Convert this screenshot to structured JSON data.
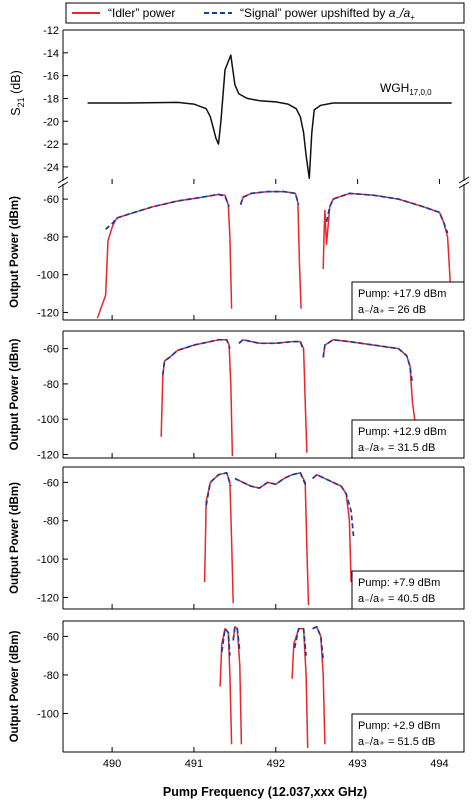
{
  "legend": {
    "idler_label": "“Idler” power",
    "signal_prefix": "“Signal” power upshifted by ",
    "signal_ratio": "a",
    "signal_ratio_sub1": "−",
    "signal_ratio_mid": "/a",
    "signal_ratio_sub2": "+",
    "idler_color": "#e8262b",
    "signal_color": "#1b3a9e"
  },
  "xaxis": {
    "label": "Pump Frequency (12.037,xxx GHz)",
    "ticks": [
      "490",
      "491",
      "492",
      "493",
      "494"
    ]
  },
  "chart_data": [
    {
      "type": "line",
      "ylabel_main": "S",
      "ylabel_sub": "21",
      "ylabel_unit": " (dB)",
      "xlim": [
        489.4,
        494.3
      ],
      "ylim": [
        -25.5,
        -12
      ],
      "yticks": [
        "-12",
        "-14",
        "-16",
        "-18",
        "-20",
        "-22",
        "-24"
      ],
      "annotation_main": "WGH",
      "annotation_sub": "17,0,0",
      "series": [
        {
          "color": "#111111",
          "x": [
            489.7,
            490.2,
            490.8,
            491.0,
            491.15,
            491.2,
            491.27,
            491.3,
            491.33,
            491.38,
            491.45,
            491.5,
            491.55,
            491.65,
            491.8,
            492.0,
            492.15,
            492.25,
            492.3,
            492.34,
            492.37,
            492.41,
            492.44,
            492.47,
            492.55,
            492.7,
            493.0,
            493.5,
            494.0,
            494.15
          ],
          "y": [
            -18.4,
            -18.4,
            -18.35,
            -18.5,
            -18.9,
            -19.6,
            -21.5,
            -22.0,
            -20.0,
            -15.5,
            -14.2,
            -16.8,
            -17.6,
            -18.0,
            -18.2,
            -18.3,
            -18.5,
            -18.9,
            -19.6,
            -21.0,
            -23.0,
            -25.0,
            -21.0,
            -19.0,
            -18.6,
            -18.4,
            -18.4,
            -18.4,
            -18.4,
            -18.4
          ]
        }
      ]
    },
    {
      "type": "line",
      "ylabel": "Output Power (dBm)",
      "xlim": [
        489.4,
        494.3
      ],
      "ylim": [
        -124,
        -52
      ],
      "yticks": [
        "-60",
        "-80",
        "-100",
        "-120"
      ],
      "annotation_line1": "Pump: +17.9 dBm",
      "annotation_line2": "a₋/a₊ = 26 dB",
      "series": [
        {
          "name": "“Idler” power",
          "color": "#e8262b",
          "dash": false,
          "segments": [
            {
              "x": [
                489.82,
                489.92,
                489.95,
                490.0,
                490.03,
                490.06,
                490.2,
                490.5,
                490.8,
                491.1,
                491.3,
                491.38,
                491.42,
                491.44,
                491.46
              ],
              "y": [
                -123,
                -111,
                -82,
                -75,
                -72,
                -70,
                -68,
                -64,
                -61,
                -59,
                -57.5,
                -58,
                -63,
                -80,
                -118
              ]
            },
            {
              "x": [
                491.57,
                491.6,
                491.7,
                491.9,
                492.1,
                492.24,
                492.27,
                492.29,
                492.31
              ],
              "y": [
                -63,
                -59,
                -57,
                -56,
                -56,
                -57,
                -62,
                -95,
                -118
              ]
            },
            {
              "x": [
                492.58,
                492.59,
                492.6,
                492.62,
                492.66,
                492.7,
                492.9,
                493.2,
                493.5,
                493.8,
                494.0,
                494.05,
                494.1,
                494.14
              ],
              "y": [
                -97,
                -78,
                -66,
                -84,
                -64,
                -60,
                -57,
                -58,
                -60,
                -64,
                -67,
                -72,
                -80,
                -110
              ]
            }
          ]
        },
        {
          "name": "“Signal” power upshifted by a₋/a₊",
          "color": "#1b3a9e",
          "dash": true,
          "segments": [
            {
              "x": [
                489.92,
                490.0,
                490.06,
                490.2,
                490.5,
                490.8,
                491.1,
                491.3,
                491.38,
                491.43
              ],
              "y": [
                -76,
                -73,
                -70,
                -68,
                -64,
                -61,
                -59,
                -57.5,
                -58.5,
                -64
              ]
            },
            {
              "x": [
                491.57,
                491.6,
                491.7,
                491.9,
                492.1,
                492.24,
                492.28
              ],
              "y": [
                -63,
                -59,
                -57,
                -56,
                -56,
                -57,
                -63
              ]
            },
            {
              "x": [
                492.62,
                492.66,
                492.7,
                492.9,
                493.2,
                493.5,
                493.8,
                494.0,
                494.05,
                494.1
              ],
              "y": [
                -72,
                -64,
                -60,
                -57,
                -58,
                -60,
                -64,
                -67,
                -72,
                -78
              ]
            }
          ]
        }
      ]
    },
    {
      "type": "line",
      "ylabel": "Output Power (dBm)",
      "xlim": [
        489.4,
        494.3
      ],
      "ylim": [
        -122,
        -50
      ],
      "yticks": [
        "-60",
        "-80",
        "-100",
        "-120"
      ],
      "annotation_line1": "Pump: +12.9 dBm",
      "annotation_line2": "a₋/a₊ = 31.5 dB",
      "series": [
        {
          "name": "“Idler” power",
          "color": "#e8262b",
          "dash": false,
          "segments": [
            {
              "x": [
                490.6,
                490.62,
                490.64,
                490.7,
                490.8,
                491.0,
                491.3,
                491.4,
                491.43,
                491.45,
                491.47
              ],
              "y": [
                -110,
                -75,
                -67,
                -65,
                -61,
                -58,
                -55,
                -55,
                -58,
                -80,
                -121
              ]
            },
            {
              "x": [
                491.55,
                491.6,
                491.8,
                492.0,
                492.2,
                492.3,
                492.34,
                492.36,
                492.38
              ],
              "y": [
                -57,
                -55,
                -57,
                -57,
                -56,
                -56,
                -60,
                -90,
                -119
              ]
            },
            {
              "x": [
                492.58,
                492.6,
                492.7,
                492.9,
                493.2,
                493.5,
                493.6,
                493.64,
                493.67,
                493.7
              ],
              "y": [
                -65,
                -58,
                -55,
                -56,
                -58,
                -60,
                -64,
                -70,
                -90,
                -101
              ]
            }
          ]
        },
        {
          "name": "“Signal” power upshifted by a₋/a₊",
          "color": "#1b3a9e",
          "dash": true,
          "segments": [
            {
              "x": [
                490.62,
                490.64,
                490.7,
                490.8,
                491.0,
                491.3,
                491.4,
                491.44
              ],
              "y": [
                -75,
                -67,
                -65,
                -61,
                -58,
                -55,
                -55,
                -60
              ]
            },
            {
              "x": [
                491.55,
                491.6,
                491.8,
                492.0,
                492.2,
                492.3,
                492.34
              ],
              "y": [
                -57,
                -55,
                -57,
                -57,
                -56,
                -56,
                -61
              ]
            },
            {
              "x": [
                492.58,
                492.6,
                492.7,
                492.9,
                493.2,
                493.5,
                493.6,
                493.64,
                493.67
              ],
              "y": [
                -65,
                -58,
                -55,
                -56,
                -58,
                -60,
                -64,
                -70,
                -80
              ]
            }
          ]
        }
      ]
    },
    {
      "type": "line",
      "ylabel": "Output Power (dBm)",
      "xlim": [
        489.4,
        494.3
      ],
      "ylim": [
        -126,
        -52
      ],
      "yticks": [
        "-60",
        "-80",
        "-100",
        "-120"
      ],
      "annotation_line1": "Pump: +7.9 dBm",
      "annotation_line2": "a₋/a₊ = 40.5 dB",
      "series": [
        {
          "name": "“Idler” power",
          "color": "#e8262b",
          "dash": false,
          "segments": [
            {
              "x": [
                491.13,
                491.15,
                491.2,
                491.3,
                491.4,
                491.44,
                491.46,
                491.48
              ],
              "y": [
                -112,
                -70,
                -60,
                -56,
                -55,
                -60,
                -90,
                -123
              ]
            },
            {
              "x": [
                491.5,
                491.6,
                491.7,
                491.8,
                491.9,
                492.0,
                492.1,
                492.2,
                492.3,
                492.36,
                492.38,
                492.4
              ],
              "y": [
                -58,
                -60,
                -62,
                -63,
                -60,
                -61,
                -58,
                -56,
                -55,
                -60,
                -95,
                -124
              ]
            },
            {
              "x": [
                492.45,
                492.5,
                492.6,
                492.7,
                492.8,
                492.86,
                492.9,
                492.92
              ],
              "y": [
                -58,
                -56,
                -58,
                -60,
                -62,
                -66,
                -80,
                -112
              ]
            }
          ]
        },
        {
          "name": "“Signal” power upshifted by a₋/a₊",
          "color": "#1b3a9e",
          "dash": true,
          "segments": [
            {
              "x": [
                491.15,
                491.2,
                491.3,
                491.4,
                491.45
              ],
              "y": [
                -72,
                -60,
                -56,
                -55,
                -62
              ]
            },
            {
              "x": [
                491.5,
                491.6,
                491.7,
                491.8,
                491.9,
                492.0,
                492.1,
                492.2,
                492.3,
                492.37
              ],
              "y": [
                -58,
                -60,
                -62,
                -63,
                -60,
                -61,
                -58,
                -56,
                -55,
                -62
              ]
            },
            {
              "x": [
                492.45,
                492.5,
                492.6,
                492.7,
                492.8,
                492.86,
                492.92,
                492.95
              ],
              "y": [
                -58,
                -56,
                -58,
                -60,
                -62,
                -66,
                -75,
                -88
              ]
            }
          ]
        }
      ]
    },
    {
      "type": "line",
      "ylabel": "Output Power (dBm)",
      "xlim": [
        489.4,
        494.3
      ],
      "ylim": [
        -120,
        -52
      ],
      "yticks": [
        "-60",
        "-80",
        "-100"
      ],
      "annotation_line1": "Pump: +2.9 dBm",
      "annotation_line2": "a₋/a₊ = 51.5 dB",
      "series": [
        {
          "name": "“Idler” power",
          "color": "#e8262b",
          "dash": false,
          "segments": [
            {
              "x": [
                491.32,
                491.34,
                491.38,
                491.42,
                491.44,
                491.46
              ],
              "y": [
                -86,
                -64,
                -56,
                -58,
                -80,
                -116
              ]
            },
            {
              "x": [
                491.48,
                491.5,
                491.53,
                491.56,
                491.58
              ],
              "y": [
                -62,
                -55,
                -56,
                -75,
                -116
              ]
            },
            {
              "x": [
                492.2,
                492.22,
                492.28,
                492.34,
                492.37,
                492.39
              ],
              "y": [
                -82,
                -64,
                -56,
                -56,
                -80,
                -118
              ]
            },
            {
              "x": [
                492.45,
                492.5,
                492.55,
                492.58,
                492.6
              ],
              "y": [
                -56,
                -55,
                -60,
                -80,
                -116
              ]
            }
          ]
        },
        {
          "name": "“Signal” power upshifted by a₋/a₊",
          "color": "#1b3a9e",
          "dash": true,
          "segments": [
            {
              "x": [
                491.34,
                491.38,
                491.42,
                491.44
              ],
              "y": [
                -68,
                -56,
                -58,
                -70
              ]
            },
            {
              "x": [
                491.48,
                491.5,
                491.53,
                491.56
              ],
              "y": [
                -62,
                -55,
                -56,
                -68
              ]
            },
            {
              "x": [
                492.23,
                492.28,
                492.34,
                492.37
              ],
              "y": [
                -66,
                -56,
                -56,
                -70
              ]
            },
            {
              "x": [
                492.45,
                492.5,
                492.55,
                492.58
              ],
              "y": [
                -56,
                -55,
                -60,
                -72
              ]
            }
          ]
        }
      ]
    }
  ]
}
